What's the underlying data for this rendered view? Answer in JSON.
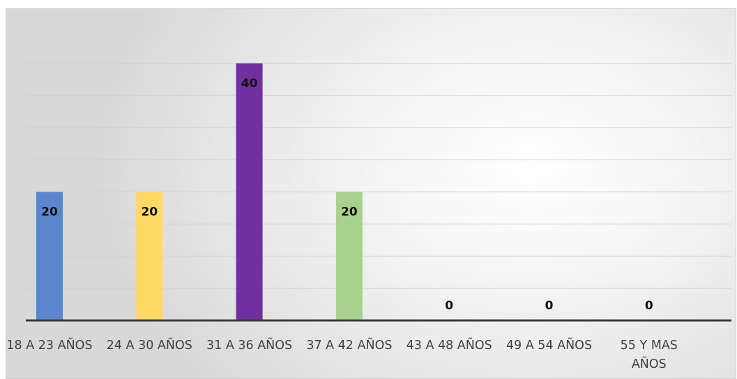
{
  "chart_data": {
    "type": "bar",
    "categories": [
      "18 A 23 AÑOS",
      "24 A 30 AÑOS",
      "31 A 36 AÑOS",
      "37 A 42 AÑOS",
      "43 A 48 AÑOS",
      "49 A 54 AÑOS",
      "55 Y MAS AÑOS"
    ],
    "category_lines": [
      [
        "18 A 23 AÑOS"
      ],
      [
        "24 A 30 AÑOS"
      ],
      [
        "31 A 36 AÑOS"
      ],
      [
        "37 A 42 AÑOS"
      ],
      [
        "43 A 48 AÑOS"
      ],
      [
        "49 A 54 AÑOS"
      ],
      [
        "55 Y MAS",
        "AÑOS"
      ]
    ],
    "values": [
      20,
      20,
      40,
      20,
      0,
      0,
      0
    ],
    "data_labels": [
      "20",
      "20",
      "40",
      "20",
      "0",
      "0",
      "0"
    ],
    "colors": [
      "#5B85CC",
      "#FFD966",
      "#7030A0",
      "#A9D18E",
      "#A5A5A5",
      "#A5A5A5",
      "#A5A5A5"
    ],
    "ylim": [
      0,
      40
    ],
    "grid": true,
    "gridlines_at": [
      0,
      5,
      10,
      15,
      20,
      25,
      30,
      35,
      40
    ],
    "legend": "none",
    "background": "light gray radial gradient"
  }
}
